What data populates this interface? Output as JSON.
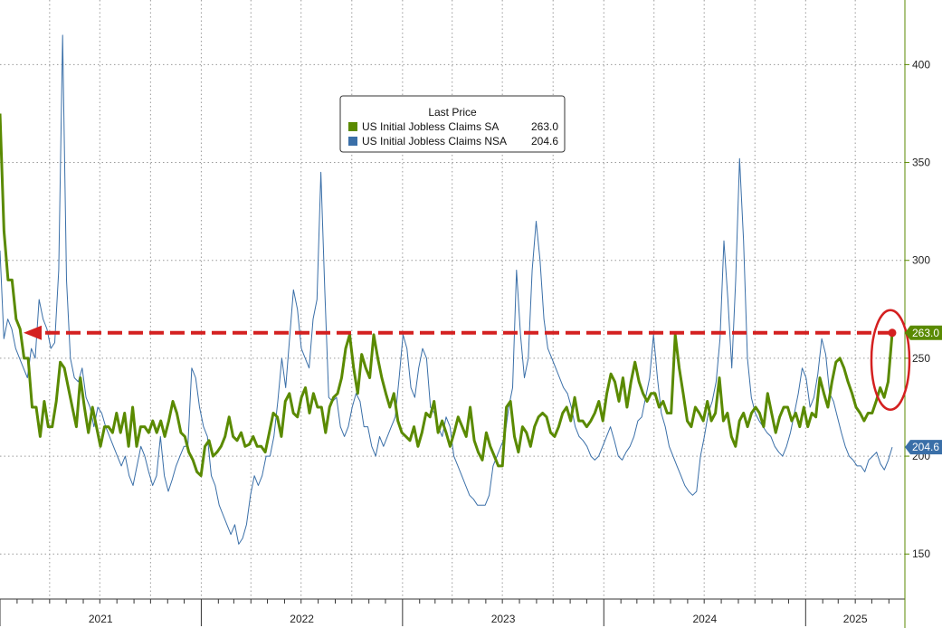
{
  "chart_data": {
    "type": "line",
    "legend": {
      "title": "Last Price",
      "placement": "top-center"
    },
    "series": [
      {
        "name": "US Initial Jobless Claims SA",
        "last_price": "263.0",
        "color": "#5a8a00",
        "values": [
          375,
          315,
          290,
          290,
          270,
          265,
          250,
          250,
          225,
          225,
          210,
          228,
          215,
          215,
          228,
          248,
          245,
          235,
          225,
          215,
          240,
          225,
          212,
          225,
          215,
          205,
          215,
          215,
          212,
          222,
          212,
          222,
          205,
          225,
          205,
          215,
          215,
          212,
          218,
          212,
          218,
          210,
          218,
          228,
          222,
          212,
          210,
          202,
          198,
          192,
          190,
          205,
          208,
          200,
          202,
          205,
          210,
          220,
          210,
          208,
          212,
          205,
          206,
          210,
          205,
          205,
          202,
          212,
          222,
          220,
          210,
          228,
          232,
          222,
          220,
          230,
          235,
          222,
          232,
          225,
          225,
          212,
          225,
          230,
          232,
          240,
          255,
          262,
          245,
          232,
          252,
          245,
          240,
          262,
          250,
          240,
          232,
          225,
          232,
          218,
          212,
          210,
          208,
          215,
          205,
          212,
          222,
          220,
          228,
          212,
          218,
          212,
          205,
          212,
          220,
          215,
          210,
          225,
          208,
          202,
          198,
          212,
          205,
          200,
          195,
          195,
          225,
          228,
          210,
          202,
          215,
          212,
          205,
          215,
          220,
          222,
          220,
          212,
          210,
          215,
          222,
          225,
          218,
          230,
          218,
          218,
          215,
          218,
          222,
          228,
          218,
          232,
          242,
          238,
          228,
          240,
          225,
          238,
          248,
          238,
          232,
          228,
          232,
          232,
          225,
          228,
          222,
          222,
          262,
          245,
          232,
          218,
          215,
          225,
          222,
          218,
          228,
          218,
          222,
          240,
          218,
          222,
          210,
          205,
          218,
          222,
          215,
          222,
          225,
          222,
          215,
          232,
          222,
          212,
          220,
          225,
          225,
          218,
          222,
          215,
          225,
          215,
          222,
          220,
          240,
          232,
          225,
          238,
          248,
          250,
          245,
          238,
          232,
          225,
          222,
          218,
          222,
          222,
          228,
          235,
          230,
          238,
          263
        ],
        "start_date": "2021-01-01",
        "end_date": "2025-06-07"
      },
      {
        "name": "US Initial Jobless Claims NSA",
        "last_price": "204.6",
        "color": "#3a6fa8",
        "values": [
          305,
          260,
          270,
          265,
          255,
          250,
          245,
          240,
          255,
          250,
          280,
          270,
          265,
          255,
          258,
          295,
          415,
          290,
          250,
          240,
          238,
          245,
          230,
          225,
          215,
          225,
          222,
          215,
          210,
          205,
          200,
          195,
          200,
          190,
          185,
          195,
          205,
          200,
          192,
          185,
          190,
          210,
          190,
          182,
          188,
          195,
          200,
          205,
          205,
          245,
          240,
          225,
          215,
          210,
          190,
          185,
          175,
          170,
          165,
          160,
          165,
          155,
          158,
          165,
          180,
          190,
          185,
          190,
          200,
          200,
          210,
          228,
          250,
          235,
          260,
          285,
          275,
          255,
          250,
          245,
          270,
          280,
          345,
          285,
          230,
          228,
          230,
          215,
          210,
          215,
          225,
          232,
          228,
          215,
          215,
          205,
          200,
          210,
          205,
          210,
          215,
          220,
          240,
          262,
          255,
          235,
          230,
          245,
          255,
          250,
          225,
          222,
          215,
          210,
          220,
          215,
          200,
          195,
          190,
          185,
          180,
          178,
          175,
          175,
          175,
          180,
          195,
          200,
          205,
          210,
          225,
          235,
          295,
          262,
          240,
          250,
          295,
          320,
          300,
          270,
          255,
          250,
          245,
          240,
          235,
          232,
          225,
          215,
          210,
          208,
          205,
          200,
          198,
          200,
          205,
          210,
          215,
          208,
          200,
          198,
          202,
          205,
          210,
          218,
          220,
          230,
          240,
          262,
          240,
          222,
          215,
          205,
          200,
          195,
          190,
          185,
          182,
          180,
          182,
          200,
          210,
          222,
          228,
          238,
          260,
          310,
          280,
          245,
          290,
          352,
          310,
          250,
          230,
          222,
          218,
          215,
          212,
          210,
          205,
          202,
          200,
          205,
          212,
          222,
          232,
          245,
          240,
          225,
          230,
          242,
          260,
          252,
          232,
          228,
          220,
          212,
          205,
          200,
          198,
          195,
          195,
          192,
          198,
          200,
          202,
          196,
          193,
          198,
          204.6
        ],
        "start_date": "2021-01-01",
        "end_date": "2025-06-07"
      }
    ],
    "y_axis": {
      "position": "right",
      "ticks": [
        150,
        200,
        250,
        300,
        350,
        400
      ],
      "ylim": [
        127,
        433
      ]
    },
    "x_axis": {
      "year_labels": [
        "2021",
        "2022",
        "2023",
        "2024",
        "2025"
      ],
      "range": [
        "2021-01-01",
        "2025-06-30"
      ]
    },
    "grid": true,
    "value_tags": [
      {
        "value": 263.0,
        "label": "263.0",
        "color": "#5a8a00"
      },
      {
        "value": 204.6,
        "label": "204.6",
        "color": "#3a6fa8"
      }
    ],
    "annotations": {
      "arrow_level": 263,
      "arrow_color": "#d42020",
      "circle_color": "#d42020"
    }
  }
}
